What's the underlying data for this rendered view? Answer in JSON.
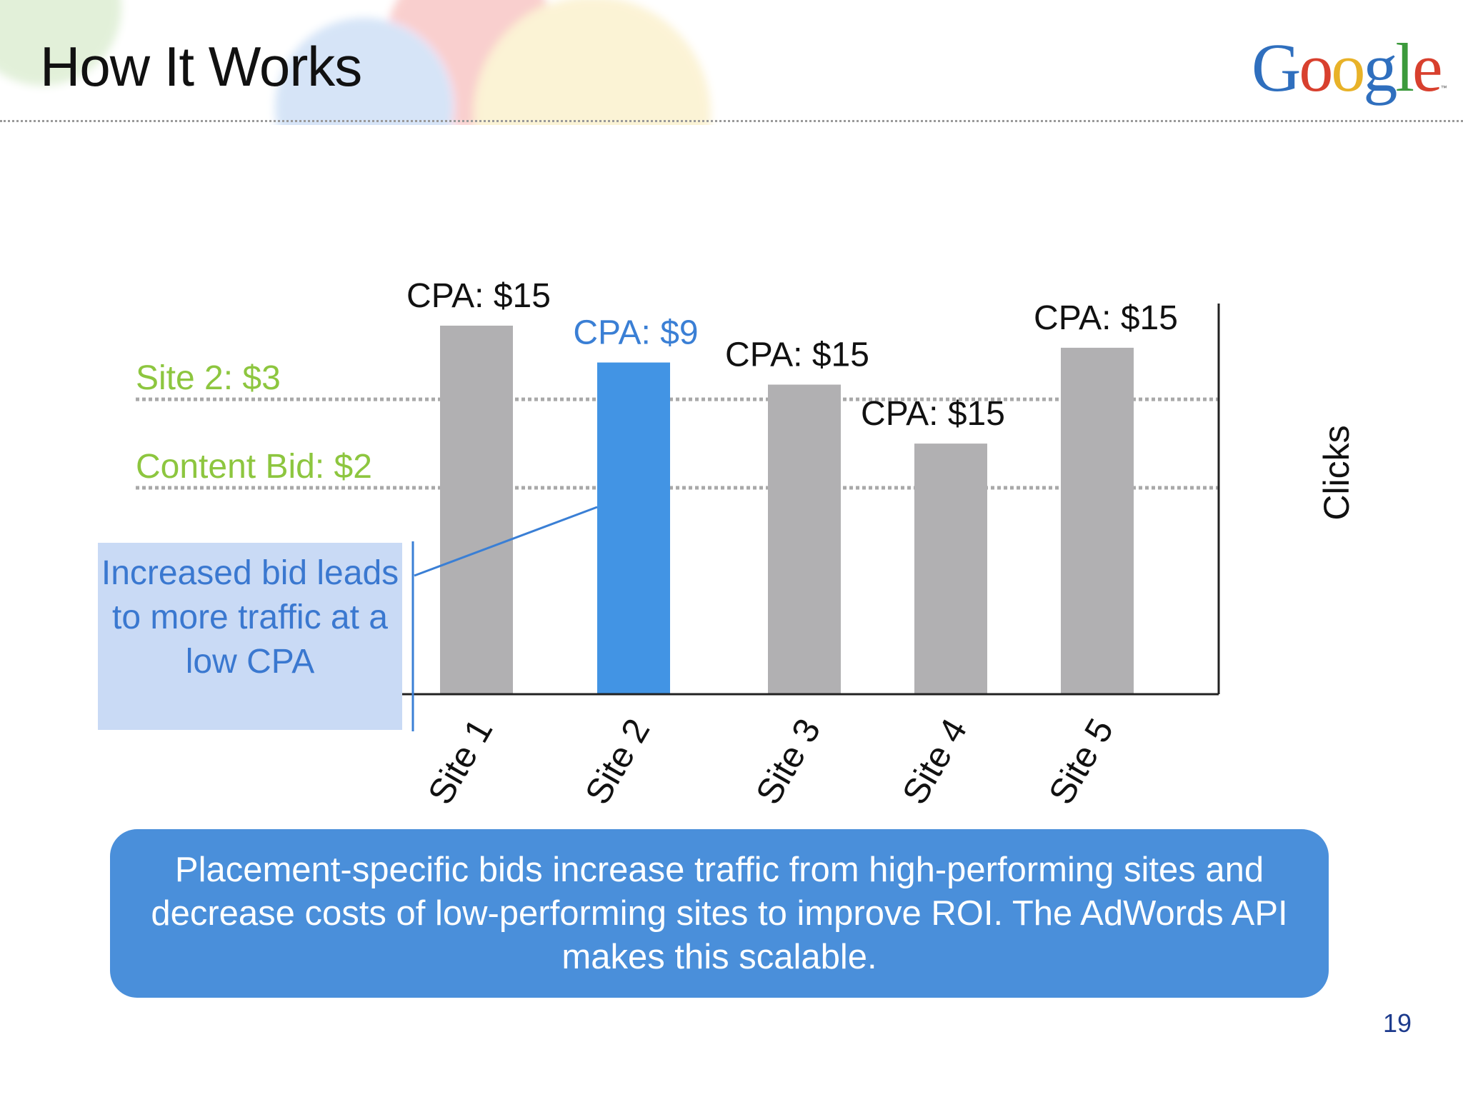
{
  "slide": {
    "title": "How It Works",
    "logo_text": "Google",
    "logo_tm": "™",
    "callout": "Increased bid leads to more traffic at a low CPA",
    "summary": "Placement-specific bids increase traffic from high-performing sites and decrease costs of low-performing sites to improve ROI. The AdWords API makes this scalable.",
    "page_number": "19"
  },
  "colors": {
    "gray_bar": "#b1b0b2",
    "highlight_bar": "#4294e4",
    "bid_label": "#8dc63f",
    "highlight_text": "#3a7fd5",
    "reference_line": "#a9a9a9",
    "axis": "#222222",
    "callout_bg": "#c9daf5",
    "summary_bg": "#4a8fda",
    "logo_letters": [
      "#2f6fbe",
      "#d8402e",
      "#e8b228",
      "#2f6fbe",
      "#3c9a3c",
      "#d8402e"
    ]
  },
  "chart_data": {
    "type": "bar",
    "categories": [
      "Site 1",
      "Site 2",
      "Site 3",
      "Site 4",
      "Site 5"
    ],
    "values": [
      5.0,
      4.5,
      4.2,
      3.4,
      4.7
    ],
    "value_axis_label": "Clicks",
    "value_axis_position": "right",
    "ylim": [
      0,
      5.3
    ],
    "data_labels": [
      "CPA: $15",
      "CPA: $9",
      "CPA: $15",
      "CPA: $15",
      "CPA: $15"
    ],
    "highlight_index": 1,
    "reference_lines": [
      {
        "label": "Site 2: $3",
        "value": 4.0
      },
      {
        "label": "Content Bid: $2",
        "value": 2.8
      }
    ],
    "grid": false,
    "legend": "none"
  }
}
